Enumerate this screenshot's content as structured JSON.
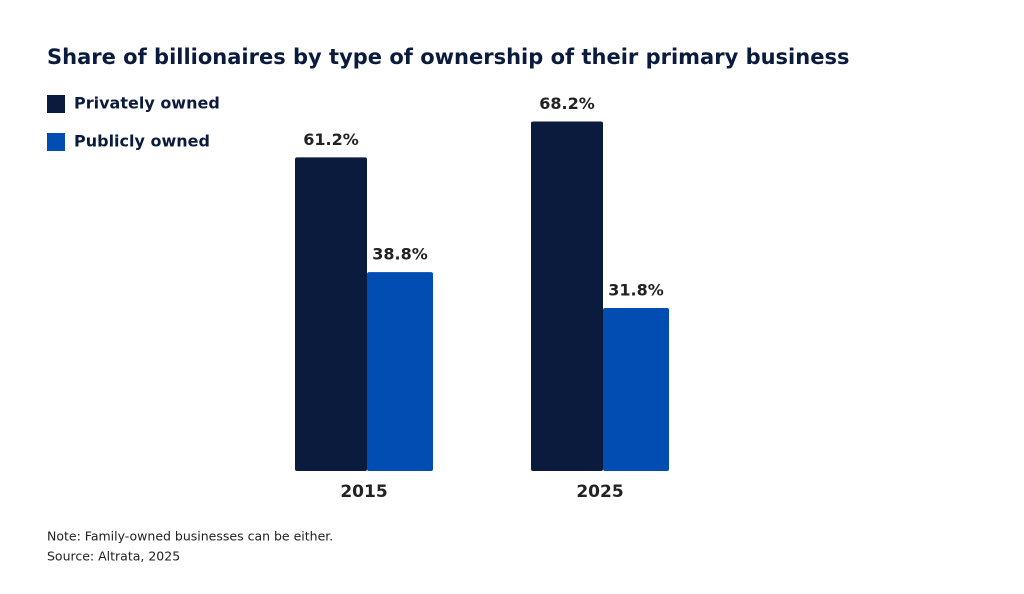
{
  "chart_data": {
    "type": "bar",
    "title": "Share of billionaires by type of ownership of their primary business",
    "categories": [
      "2015",
      "2025"
    ],
    "series": [
      {
        "name": "Privately owned",
        "color": "#0b1b3d",
        "values": [
          61.2,
          68.2
        ],
        "value_labels": [
          "61.2%",
          "68.2%"
        ]
      },
      {
        "name": "Publicly owned",
        "color": "#014db2",
        "values": [
          38.8,
          31.8
        ],
        "value_labels": [
          "38.8%",
          "31.8%"
        ]
      }
    ],
    "legend": "top-left",
    "note": "Note: Family-owned businesses can be either.",
    "source": "Source: Altrata, 2025"
  }
}
